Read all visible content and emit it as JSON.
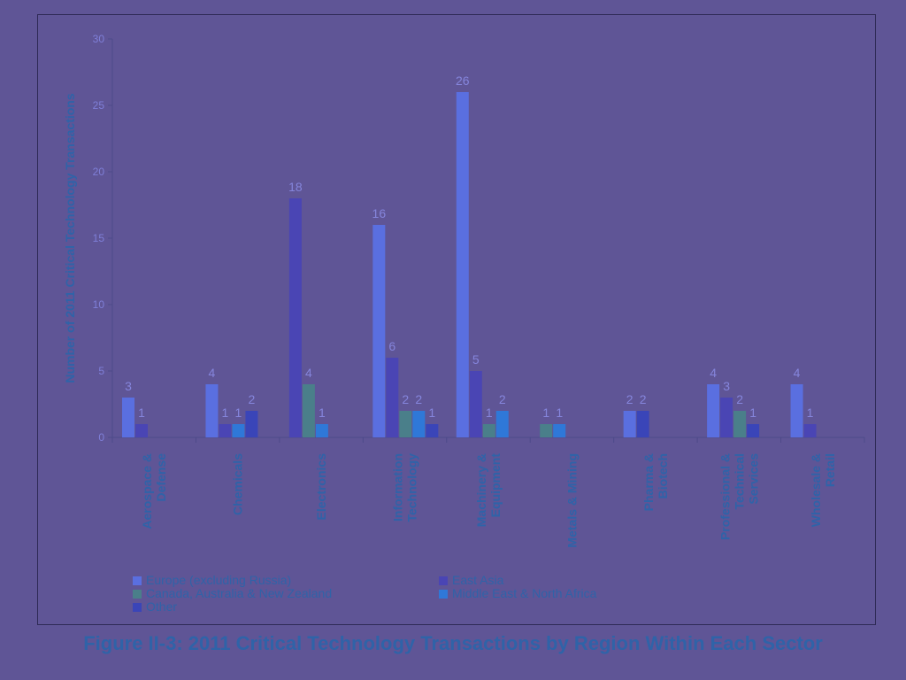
{
  "chart_data": {
    "type": "bar",
    "title": "Figure II-3: 2011 Critical Technology Transactions by Region Within Each Sector",
    "ylabel": "Number of 2011 Critical Technology Transactions",
    "ylim": [
      0,
      30
    ],
    "yticks": [
      0,
      5,
      10,
      15,
      20,
      25,
      30
    ],
    "grid": false,
    "legend_position": "bottom",
    "categories": [
      [
        "Aerospace &",
        "Defense"
      ],
      [
        "Chemicals"
      ],
      [
        "Electronics"
      ],
      [
        "Information",
        "Technology"
      ],
      [
        "Machinery &",
        "Equipment"
      ],
      [
        "Metals & Mining"
      ],
      [
        "Pharma &",
        "Biotech"
      ],
      [
        "Professional &",
        "Technical",
        "Services"
      ],
      [
        "Wholesale &",
        "Retail"
      ]
    ],
    "series": [
      {
        "name": "Europe (excluding Russia)",
        "color": "#5a6fe0",
        "values": [
          3,
          4,
          null,
          16,
          26,
          null,
          2,
          4,
          4
        ]
      },
      {
        "name": "East Asia",
        "color": "#4a45b4",
        "values": [
          1,
          1,
          18,
          6,
          5,
          null,
          null,
          3,
          1
        ]
      },
      {
        "name": "Canada, Australia & New Zealand",
        "color": "#4a7f8a",
        "values": [
          null,
          null,
          4,
          2,
          1,
          1,
          null,
          2,
          null
        ]
      },
      {
        "name": "Middle East & North Africa",
        "color": "#2f78d8",
        "values": [
          null,
          1,
          1,
          2,
          2,
          1,
          null,
          null,
          null
        ]
      },
      {
        "name": "Other",
        "color": "#3a45b8",
        "values": [
          null,
          2,
          null,
          1,
          null,
          null,
          2,
          1,
          null
        ]
      }
    ]
  }
}
